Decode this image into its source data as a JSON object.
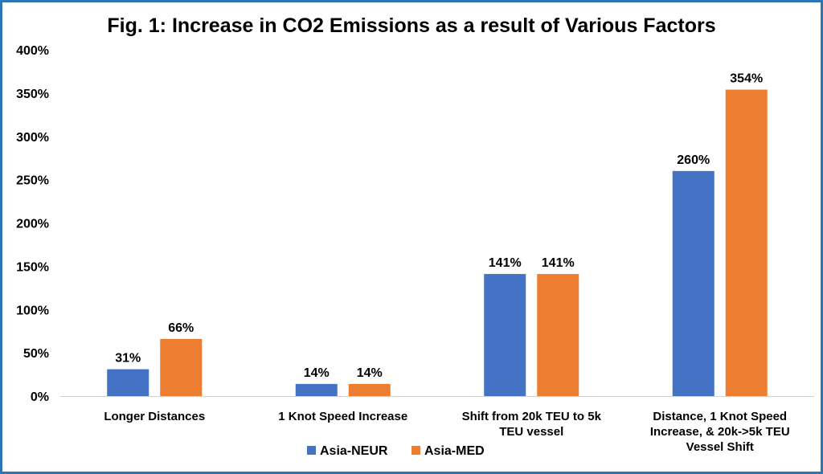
{
  "chart_data": {
    "type": "bar",
    "title": "Fig. 1: Increase in CO2 Emissions as a result of Various Factors",
    "xlabel": "",
    "ylabel": "",
    "ylim": [
      0,
      400
    ],
    "y_ticks": [
      "0%",
      "50%",
      "100%",
      "150%",
      "200%",
      "250%",
      "300%",
      "350%",
      "400%"
    ],
    "y_tick_values": [
      0,
      50,
      100,
      150,
      200,
      250,
      300,
      350,
      400
    ],
    "grid": false,
    "legend_position": "bottom",
    "categories": [
      [
        "Longer Distances"
      ],
      [
        "1 Knot Speed Increase"
      ],
      [
        "Shift from 20k TEU to 5k",
        "TEU vessel"
      ],
      [
        "Distance, 1 Knot Speed",
        "Increase, & 20k->5k TEU",
        "Vessel Shift"
      ]
    ],
    "series": [
      {
        "name": "Asia-NEUR",
        "color": "#4472c4",
        "values": [
          31,
          14,
          141,
          260
        ],
        "labels": [
          "31%",
          "14%",
          "141%",
          "260%"
        ]
      },
      {
        "name": "Asia-MED",
        "color": "#ed7d31",
        "values": [
          66,
          14,
          141,
          354
        ],
        "labels": [
          "66%",
          "14%",
          "141%",
          "354%"
        ]
      }
    ]
  }
}
